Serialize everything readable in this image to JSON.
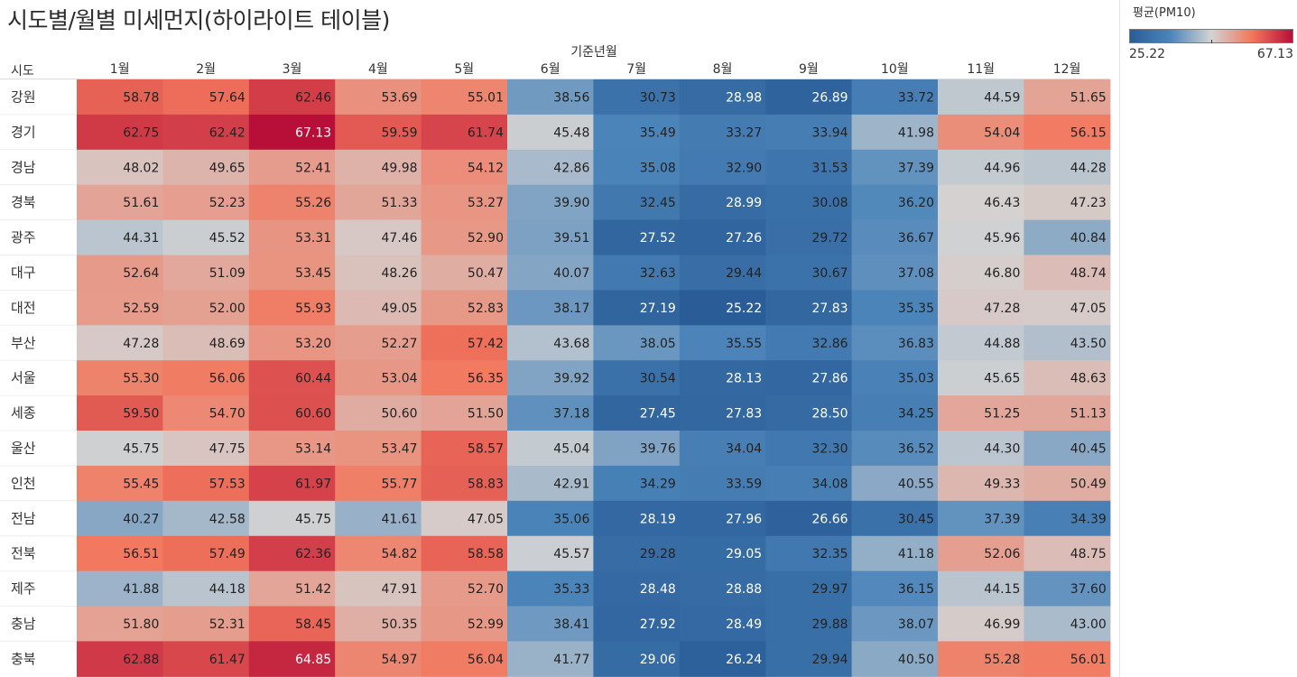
{
  "title": "시도별/월별 미세먼지(하이라이트 테이블)",
  "column_group_label": "기준년월",
  "row_header_label": "시도",
  "legend": {
    "title": "평균(PM10)",
    "min_label": "25.22",
    "max_label": "67.13",
    "min": 25.22,
    "max": 67.13,
    "low_color": "#2a5d98",
    "mid_color": "#d3d3d3",
    "high_color": "#b80f38"
  },
  "chart_data": {
    "type": "heatmap",
    "title": "시도별/월별 미세먼지(하이라이트 테이블)",
    "x_title": "기준년월",
    "y_title": "시도",
    "measure": "평균(PM10)",
    "color_range": [
      25.22,
      67.13
    ],
    "columns": [
      "1월",
      "2월",
      "3월",
      "4월",
      "5월",
      "6월",
      "7월",
      "8월",
      "9월",
      "10월",
      "11월",
      "12월"
    ],
    "rows": [
      "강원",
      "경기",
      "경남",
      "경북",
      "광주",
      "대구",
      "대전",
      "부산",
      "서울",
      "세종",
      "울산",
      "인천",
      "전남",
      "전북",
      "제주",
      "충남",
      "충북"
    ],
    "values": [
      [
        58.78,
        57.64,
        62.46,
        53.69,
        55.01,
        38.56,
        30.73,
        28.98,
        26.89,
        33.72,
        44.59,
        51.65
      ],
      [
        62.75,
        62.42,
        67.13,
        59.59,
        61.74,
        45.48,
        35.49,
        33.27,
        33.94,
        41.98,
        54.04,
        56.15
      ],
      [
        48.02,
        49.65,
        52.41,
        49.98,
        54.12,
        42.86,
        35.08,
        32.9,
        31.53,
        37.39,
        44.96,
        44.28
      ],
      [
        51.61,
        52.23,
        55.26,
        51.33,
        53.27,
        39.9,
        32.45,
        28.99,
        30.08,
        36.2,
        46.43,
        47.23
      ],
      [
        44.31,
        45.52,
        53.31,
        47.46,
        52.9,
        39.51,
        27.52,
        27.26,
        29.72,
        36.67,
        45.96,
        40.84
      ],
      [
        52.64,
        51.09,
        53.45,
        48.26,
        50.47,
        40.07,
        32.63,
        29.44,
        30.67,
        37.08,
        46.8,
        48.74
      ],
      [
        52.59,
        52.0,
        55.93,
        49.05,
        52.83,
        38.17,
        27.19,
        25.22,
        27.83,
        35.35,
        47.28,
        47.05
      ],
      [
        47.28,
        48.69,
        53.2,
        52.27,
        57.42,
        43.68,
        38.05,
        35.55,
        32.86,
        36.83,
        44.88,
        43.5
      ],
      [
        55.3,
        56.06,
        60.44,
        53.04,
        56.35,
        39.92,
        30.54,
        28.13,
        27.86,
        35.03,
        45.65,
        48.63
      ],
      [
        59.5,
        54.7,
        60.6,
        50.6,
        51.5,
        37.18,
        27.45,
        27.83,
        28.5,
        34.25,
        51.25,
        51.13
      ],
      [
        45.75,
        47.75,
        53.14,
        53.47,
        58.57,
        45.04,
        39.76,
        34.04,
        32.3,
        36.52,
        44.3,
        40.45
      ],
      [
        55.45,
        57.53,
        61.97,
        55.77,
        58.83,
        42.91,
        34.29,
        33.59,
        34.08,
        40.55,
        49.33,
        50.49
      ],
      [
        40.27,
        42.58,
        45.75,
        41.61,
        47.05,
        35.06,
        28.19,
        27.96,
        26.66,
        30.45,
        37.39,
        34.39
      ],
      [
        56.51,
        57.49,
        62.36,
        54.82,
        58.58,
        45.57,
        29.28,
        29.05,
        32.35,
        41.18,
        52.06,
        48.75
      ],
      [
        41.88,
        44.18,
        51.42,
        47.91,
        52.7,
        35.33,
        28.48,
        28.88,
        29.97,
        36.15,
        44.15,
        37.6
      ],
      [
        51.8,
        52.31,
        58.45,
        50.35,
        52.99,
        38.41,
        27.92,
        28.49,
        29.88,
        38.07,
        46.99,
        43.0
      ],
      [
        62.88,
        61.47,
        64.85,
        54.97,
        56.04,
        41.77,
        29.06,
        26.24,
        29.94,
        40.5,
        55.28,
        56.01
      ]
    ]
  }
}
